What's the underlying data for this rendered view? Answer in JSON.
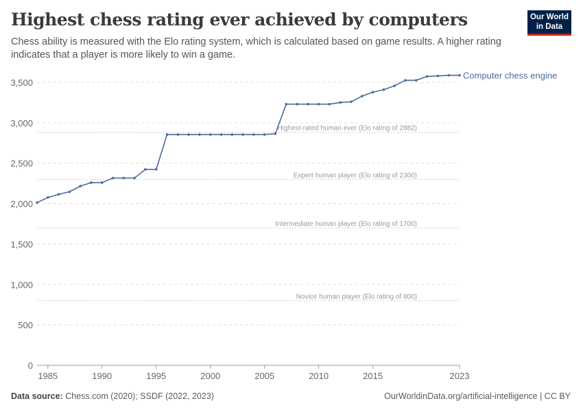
{
  "header": {
    "title": "Highest chess rating ever achieved by computers",
    "subtitle": "Chess ability is measured with the Elo rating system, which is calculated based on game results. A higher rating indicates that a player is more likely to win a game.",
    "logo_text": "Our World in Data"
  },
  "footer": {
    "source_label": "Data source:",
    "source": "Chess.com (2020); SSDF (2022, 2023)",
    "credit": "OurWorldinData.org/artificial-intelligence | CC BY"
  },
  "chart_data": {
    "type": "line",
    "title": "Highest chess rating ever achieved by computers",
    "xlabel": "",
    "ylabel": "",
    "xlim": [
      1984,
      2023
    ],
    "ylim": [
      0,
      3500
    ],
    "grid": "horizontal dashed",
    "xticks": [
      "1985",
      "1990",
      "1995",
      "2000",
      "2005",
      "2010",
      "2015",
      "2023"
    ],
    "yticks": [
      "0",
      "500",
      "1,000",
      "1,500",
      "2,000",
      "2,500",
      "3,000",
      "3,500"
    ],
    "series": [
      {
        "name": "Computer chess engine",
        "color": "#4c6a9c",
        "x": [
          1984,
          1985,
          1986,
          1987,
          1988,
          1989,
          1990,
          1991,
          1992,
          1993,
          1994,
          1995,
          1996,
          1997,
          1998,
          1999,
          2000,
          2001,
          2002,
          2003,
          2004,
          2005,
          2006,
          2007,
          2008,
          2009,
          2010,
          2011,
          2012,
          2013,
          2014,
          2015,
          2016,
          2017,
          2018,
          2019,
          2020,
          2021,
          2022,
          2023
        ],
        "y": [
          2013,
          2076,
          2115,
          2147,
          2217,
          2260,
          2260,
          2317,
          2317,
          2317,
          2424,
          2424,
          2855,
          2855,
          2855,
          2855,
          2855,
          2855,
          2855,
          2855,
          2855,
          2855,
          2866,
          3231,
          3231,
          3231,
          3231,
          3231,
          3252,
          3260,
          3330,
          3379,
          3410,
          3458,
          3526,
          3526,
          3574,
          3580,
          3588,
          3588
        ]
      }
    ],
    "reference_lines": [
      {
        "value": 2882,
        "label": "Highest-rated human ever (Elo rating of 2882)"
      },
      {
        "value": 2300,
        "label": "Expert human player (Elo rating of 2300)"
      },
      {
        "value": 1700,
        "label": "Intermediate human player (Elo rating of 1700)"
      },
      {
        "value": 800,
        "label": "Novice human player (Elo rating of 800)"
      }
    ]
  }
}
